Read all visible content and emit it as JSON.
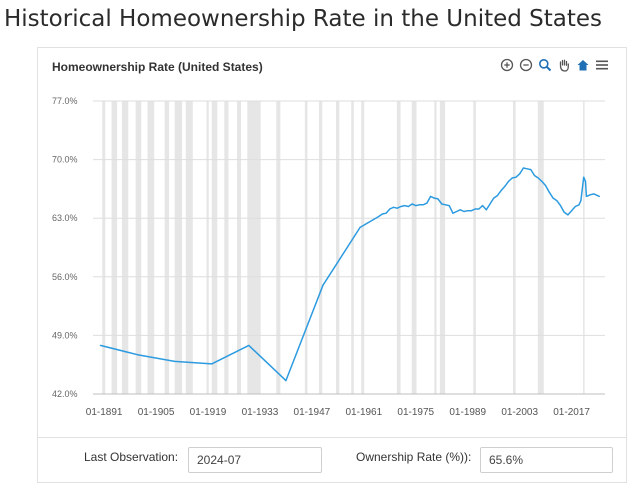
{
  "page": {
    "heading": "Historical Homeownership Rate in the United States"
  },
  "toolbar": {
    "icons": [
      "zoom-in-icon",
      "zoom-out-icon",
      "magnify-icon",
      "pan-hand-icon",
      "home-icon",
      "menu-icon"
    ]
  },
  "footer": {
    "last_observation_label": "Last Observation:",
    "last_observation_value": "2024-07",
    "ownership_rate_label": "Ownership Rate (%)):",
    "ownership_rate_value": "65.6%"
  },
  "chart_data": {
    "type": "line",
    "title": "Homeownership Rate (United States)",
    "xlabel": "",
    "ylabel": "",
    "xlim": [
      1888,
      2026
    ],
    "ylim": [
      42.0,
      77.0
    ],
    "x_ticks": [
      "01-1891",
      "01-1905",
      "01-1919",
      "01-1933",
      "01-1947",
      "01-1961",
      "01-1975",
      "01-1989",
      "01-2003",
      "01-2017"
    ],
    "x_tick_values": [
      1891,
      1905,
      1919,
      1933,
      1947,
      1961,
      1975,
      1989,
      2003,
      2017
    ],
    "y_ticks": [
      "42.0%",
      "49.0%",
      "56.0%",
      "63.0%",
      "70.0%",
      "77.0%"
    ],
    "y_tick_values": [
      42.0,
      49.0,
      56.0,
      63.0,
      70.0,
      77.0
    ],
    "grid": true,
    "line_color": "#2d9be0",
    "recession_shading_color": "#e6e6e6",
    "series": [
      {
        "x": [
          1890,
          1900,
          1910,
          1920,
          1930,
          1940,
          1950,
          1960,
          1965,
          1966,
          1967,
          1968,
          1969,
          1970,
          1971,
          1972,
          1973,
          1974,
          1975,
          1976,
          1977,
          1978,
          1979,
          1980,
          1981,
          1982,
          1983,
          1984,
          1985,
          1986,
          1987,
          1988,
          1989,
          1990,
          1991,
          1992,
          1993,
          1994,
          1995,
          1996,
          1997,
          1998,
          1999,
          2000,
          2001,
          2002,
          2003,
          2004,
          2005,
          2006,
          2007,
          2008,
          2009,
          2010,
          2011,
          2012,
          2013,
          2014,
          2015,
          2016,
          2017,
          2018,
          2019,
          2019.5,
          2020.25,
          2020.75,
          2021,
          2022,
          2023,
          2024.5
        ],
        "y": [
          47.8,
          46.7,
          45.9,
          45.6,
          47.8,
          43.6,
          55.0,
          61.9,
          63.2,
          63.5,
          63.6,
          64.1,
          64.3,
          64.2,
          64.4,
          64.5,
          64.4,
          64.7,
          64.5,
          64.6,
          64.6,
          64.8,
          65.6,
          65.4,
          65.3,
          64.7,
          64.6,
          64.5,
          63.6,
          63.8,
          64.0,
          63.8,
          63.9,
          63.9,
          64.1,
          64.1,
          64.5,
          64.0,
          64.7,
          65.4,
          65.7,
          66.3,
          66.8,
          67.4,
          67.8,
          67.9,
          68.3,
          69.0,
          68.9,
          68.8,
          68.1,
          67.8,
          67.4,
          66.9,
          66.1,
          65.4,
          65.1,
          64.5,
          63.7,
          63.4,
          63.9,
          64.4,
          64.6,
          65.1,
          67.9,
          67.4,
          65.6,
          65.8,
          65.9,
          65.6
        ]
      }
    ],
    "recession_shading_note": "gray vertical bands behind the line"
  }
}
